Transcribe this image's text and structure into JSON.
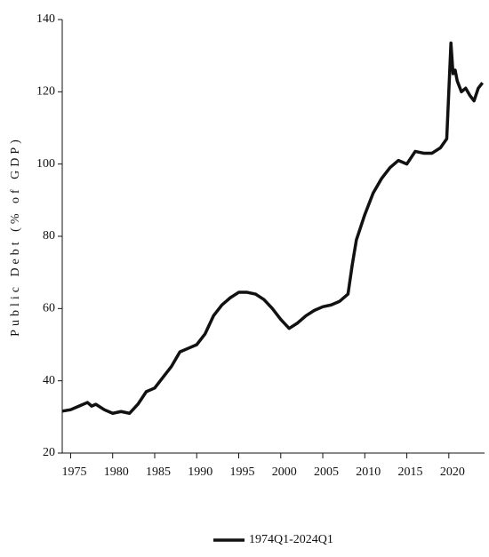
{
  "chart_data": {
    "type": "line",
    "y_label": "Public Debt (% of GDP)",
    "x": [
      1974,
      1975,
      1976,
      1977,
      1977.5,
      1978,
      1979,
      1980,
      1981,
      1982,
      1983,
      1984,
      1985,
      1986,
      1987,
      1988,
      1989,
      1990,
      1991,
      1992,
      1993,
      1994,
      1995,
      1996,
      1997,
      1998,
      1999,
      2000,
      2001,
      2002,
      2003,
      2004,
      2005,
      2006,
      2007,
      2008,
      2008.5,
      2009,
      2010,
      2011,
      2012,
      2013,
      2014,
      2015,
      2016,
      2017,
      2018,
      2019,
      2019.75,
      2020.25,
      2020.5,
      2020.75,
      2021,
      2021.5,
      2022,
      2022.5,
      2023,
      2023.5,
      2024
    ],
    "series": [
      {
        "name": "1974Q1-2024Q1",
        "color": "#111111",
        "values": [
          31.6,
          32,
          33,
          34,
          33,
          33.5,
          32,
          31,
          31.5,
          31,
          33.5,
          37,
          38,
          41,
          44,
          48,
          49,
          50,
          53,
          58,
          61,
          63,
          64.5,
          64.5,
          64,
          62.5,
          60,
          57,
          54.5,
          56,
          58,
          59.5,
          60.5,
          61,
          62,
          64,
          72,
          79,
          86,
          92,
          96,
          99,
          101,
          100,
          103.5,
          103,
          103,
          104.5,
          107,
          133.5,
          125,
          126,
          123,
          120,
          121,
          119,
          117.5,
          121,
          122.5
        ]
      }
    ],
    "xlim": [
      1974,
      2024.25
    ],
    "xticks": [
      1975,
      1980,
      1985,
      1990,
      1995,
      2000,
      2005,
      2010,
      2015,
      2020
    ],
    "ylim": [
      20,
      140
    ],
    "yticks": [
      20,
      40,
      60,
      80,
      100,
      120,
      140
    ],
    "grid": false,
    "legend": "bottom"
  }
}
